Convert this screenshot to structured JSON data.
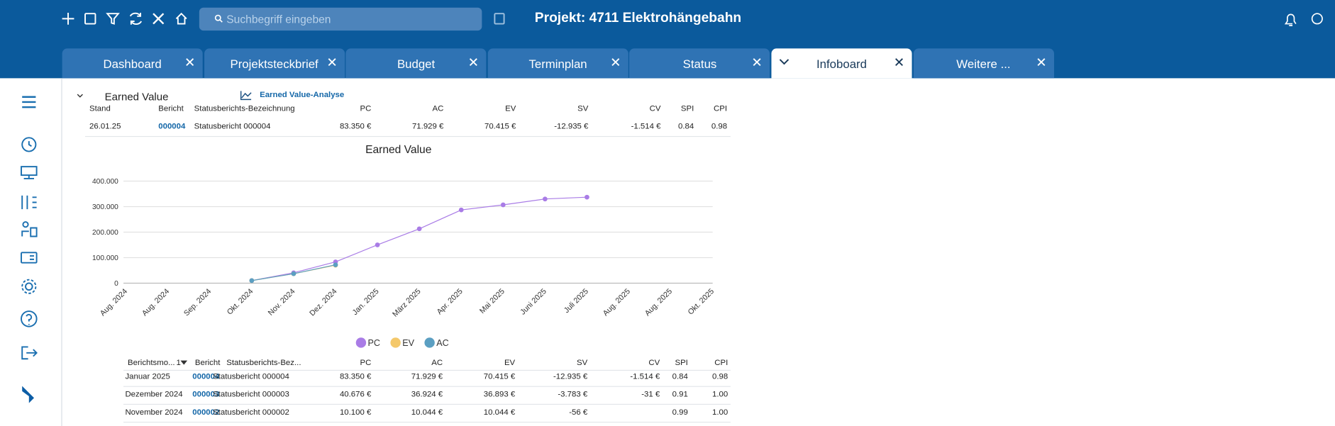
{
  "header": {
    "search_placeholder": "Suchbegriff eingeben",
    "title": "Projekt: 4711 Elektrohängebahn"
  },
  "tabs": [
    "Dashboard",
    "Projektsteckbrief",
    "Budget",
    "Terminplan",
    "Status",
    "Infoboard",
    "Weitere ..."
  ],
  "active_tab": 5,
  "panel": {
    "title": "Earned Value",
    "link": "Earned Value-Analyse"
  },
  "summary_table": {
    "columns": [
      "Stand",
      "Bericht",
      "Statusberichts-Bezeichnung",
      "PC",
      "AC",
      "EV",
      "SV",
      "CV",
      "SPI",
      "CPI"
    ],
    "rows": [
      [
        "26.01.25",
        "000004",
        "Statusbericht 000004",
        "83.350 €",
        "71.929 €",
        "70.415 €",
        "-12.935 €",
        "-1.514 €",
        "0.84",
        "0.98"
      ]
    ]
  },
  "chart": {
    "type": "line",
    "title": "Earned Value",
    "categories": [
      "Aug. 2024",
      "Aug. 2024",
      "Sep. 2024",
      "Okt. 2024",
      "Nov. 2024",
      "Dez. 2024",
      "Jan. 2025",
      "März 2025",
      "Apr. 2025",
      "Mai 2025",
      "Juni 2025",
      "Juli 2025",
      "Aug. 2025",
      "Aug. 2025",
      "Okt. 2025"
    ],
    "series": [
      {
        "name": "PC",
        "color": "#a97ce6",
        "values": [
          null,
          null,
          null,
          10100,
          40676,
          83350,
          150000,
          213000,
          287000,
          307000,
          330000,
          337000,
          null,
          null,
          null
        ]
      },
      {
        "name": "EV",
        "color": "#f4c86a",
        "values": [
          null,
          null,
          null,
          10044,
          36893,
          70415,
          null,
          null,
          null,
          null,
          null,
          null,
          null,
          null,
          null
        ]
      },
      {
        "name": "AC",
        "color": "#5b9fc2",
        "values": [
          null,
          null,
          null,
          10044,
          36924,
          71929,
          null,
          null,
          null,
          null,
          null,
          null,
          null,
          null,
          null
        ]
      }
    ],
    "ylim": [
      0,
      400000
    ],
    "yticks": [
      0,
      {
        "value": 100000,
        "label": "100.000"
      },
      {
        "value": 200000,
        "label": "200.000"
      },
      {
        "value": 300000,
        "label": "300.000"
      },
      {
        "value": 400000,
        "label": "400.000"
      }
    ],
    "grid": true
  },
  "history_table": {
    "columns": [
      "Berichtsmo...",
      "Bericht",
      "Statusberichts-Bez...",
      "PC",
      "AC",
      "EV",
      "SV",
      "CV",
      "SPI",
      "CPI"
    ],
    "sort_index": "1",
    "rows": [
      [
        "Januar 2025",
        "000004",
        "Statusbericht 000004",
        "83.350 €",
        "71.929 €",
        "70.415 €",
        "-12.935 €",
        "-1.514 €",
        "0.84",
        "0.98"
      ],
      [
        "Dezember 2024",
        "000003",
        "Statusbericht 000003",
        "40.676 €",
        "36.924 €",
        "36.893 €",
        "-3.783 €",
        "-31 €",
        "0.91",
        "1.00"
      ],
      [
        "November 2024",
        "000002",
        "Statusbericht 000002",
        "10.100 €",
        "10.044 €",
        "10.044 €",
        "-56 €",
        null,
        "0.99",
        "1.00"
      ]
    ]
  }
}
